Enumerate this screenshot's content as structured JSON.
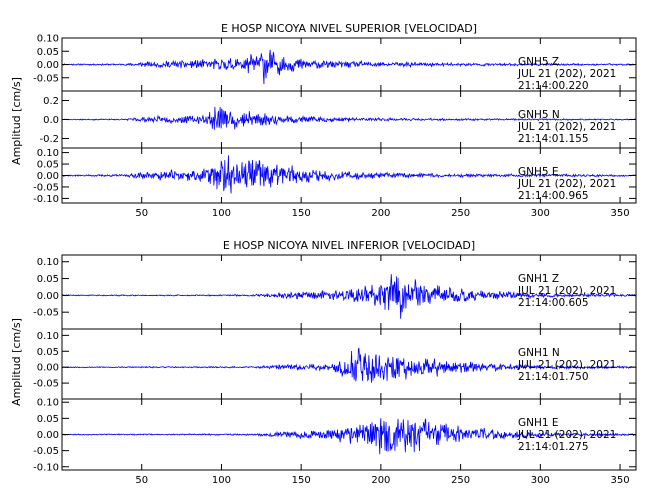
{
  "chart_data": [
    {
      "type": "line",
      "title": "E HOSP NICOYA NIVEL SUPERIOR [VELOCIDAD]",
      "ylabel": "Amplitud [cm/s]",
      "xlabel": "",
      "xlim": [
        0,
        360
      ],
      "x_ticks": [
        50,
        100,
        150,
        200,
        250,
        300,
        350
      ],
      "line_color": "#0000ff",
      "panels": [
        {
          "station": "GNH5",
          "component": "Z",
          "date": "JUL 21 (202), 2021",
          "time": "21:14:00.220",
          "ylim": [
            -0.1,
            0.1
          ],
          "y_ticks": [
            0.1,
            0.05,
            0.0,
            -0.05
          ],
          "y_tick_labels": [
            "0.10",
            "0.05",
            "0.00",
            "-0.05"
          ],
          "seed": 11,
          "envelope": [
            [
              0,
              0.003
            ],
            [
              40,
              0.004
            ],
            [
              50,
              0.012
            ],
            [
              70,
              0.018
            ],
            [
              85,
              0.022
            ],
            [
              95,
              0.025
            ],
            [
              105,
              0.03
            ],
            [
              115,
              0.04
            ],
            [
              122,
              0.06
            ],
            [
              126,
              0.1
            ],
            [
              130,
              0.07
            ],
            [
              140,
              0.035
            ],
            [
              160,
              0.02
            ],
            [
              200,
              0.012
            ],
            [
              250,
              0.007
            ],
            [
              300,
              0.005
            ],
            [
              360,
              0.004
            ]
          ]
        },
        {
          "station": "GNH5",
          "component": "N",
          "date": "JUL 21 (202), 2021",
          "time": "21:14:01.155",
          "ylim": [
            -0.3,
            0.3
          ],
          "y_ticks": [
            0.2,
            0.0,
            -0.2
          ],
          "y_tick_labels": [
            "0.2",
            "0.0",
            "-0.2"
          ],
          "seed": 23,
          "envelope": [
            [
              0,
              0.006
            ],
            [
              40,
              0.01
            ],
            [
              50,
              0.035
            ],
            [
              70,
              0.045
            ],
            [
              90,
              0.06
            ],
            [
              96,
              0.2
            ],
            [
              100,
              0.22
            ],
            [
              106,
              0.12
            ],
            [
              112,
              0.14
            ],
            [
              120,
              0.1
            ],
            [
              135,
              0.06
            ],
            [
              160,
              0.035
            ],
            [
              200,
              0.02
            ],
            [
              260,
              0.012
            ],
            [
              360,
              0.008
            ]
          ]
        },
        {
          "station": "GNH5",
          "component": "E",
          "date": "JUL 21 (202), 2021",
          "time": "21:14:00.965",
          "ylim": [
            -0.12,
            0.12
          ],
          "y_ticks": [
            0.1,
            0.05,
            0.0,
            -0.05,
            -0.1
          ],
          "y_tick_labels": [
            "0.10",
            "0.05",
            "0.00",
            "-0.05",
            "-0.10"
          ],
          "seed": 37,
          "envelope": [
            [
              0,
              0.004
            ],
            [
              40,
              0.006
            ],
            [
              50,
              0.02
            ],
            [
              70,
              0.03
            ],
            [
              90,
              0.04
            ],
            [
              96,
              0.09
            ],
            [
              100,
              0.11
            ],
            [
              110,
              0.09
            ],
            [
              120,
              0.1
            ],
            [
              130,
              0.08
            ],
            [
              150,
              0.04
            ],
            [
              170,
              0.025
            ],
            [
              200,
              0.015
            ],
            [
              260,
              0.008
            ],
            [
              360,
              0.006
            ]
          ]
        }
      ]
    },
    {
      "type": "line",
      "title": "E HOSP NICOYA NIVEL INFERIOR [VELOCIDAD]",
      "ylabel": "Amplitud [cm/s]",
      "xlabel": "",
      "xlim": [
        0,
        360
      ],
      "x_ticks": [
        50,
        100,
        150,
        200,
        250,
        300,
        350
      ],
      "line_color": "#0000ff",
      "panels": [
        {
          "station": "GNH1",
          "component": "Z",
          "date": "JUL 21 (202), 2021",
          "time": "21:14:00.605",
          "ylim": [
            -0.1,
            0.12
          ],
          "y_ticks": [
            0.1,
            0.05,
            0.0,
            -0.05
          ],
          "y_tick_labels": [
            "0.10",
            "0.05",
            "0.00",
            "-0.05"
          ],
          "seed": 41,
          "envelope": [
            [
              0,
              0.002
            ],
            [
              120,
              0.003
            ],
            [
              135,
              0.012
            ],
            [
              150,
              0.015
            ],
            [
              175,
              0.02
            ],
            [
              185,
              0.03
            ],
            [
              200,
              0.05
            ],
            [
              210,
              0.09
            ],
            [
              215,
              0.07
            ],
            [
              230,
              0.04
            ],
            [
              250,
              0.025
            ],
            [
              280,
              0.012
            ],
            [
              310,
              0.006
            ],
            [
              360,
              0.004
            ]
          ]
        },
        {
          "station": "GNH1",
          "component": "N",
          "date": "JUL 21 (202), 2021",
          "time": "21:14:01.750",
          "ylim": [
            -0.1,
            0.12
          ],
          "y_ticks": [
            0.1,
            0.05,
            0.0,
            -0.05
          ],
          "y_tick_labels": [
            "0.10",
            "0.05",
            "0.00",
            "-0.05"
          ],
          "seed": 53,
          "envelope": [
            [
              0,
              0.002
            ],
            [
              120,
              0.003
            ],
            [
              135,
              0.01
            ],
            [
              170,
              0.015
            ],
            [
              180,
              0.05
            ],
            [
              184,
              0.1
            ],
            [
              190,
              0.07
            ],
            [
              200,
              0.06
            ],
            [
              215,
              0.05
            ],
            [
              240,
              0.03
            ],
            [
              270,
              0.015
            ],
            [
              300,
              0.008
            ],
            [
              360,
              0.004
            ]
          ]
        },
        {
          "station": "GNH1",
          "component": "E",
          "date": "JUL 21 (202), 2021",
          "time": "21:14:01.275",
          "ylim": [
            -0.11,
            0.11
          ],
          "y_ticks": [
            0.1,
            0.05,
            0.0,
            -0.05,
            -0.1
          ],
          "y_tick_labels": [
            "0.10",
            "0.05",
            "0.00",
            "-0.05",
            "-0.10"
          ],
          "seed": 67,
          "envelope": [
            [
              0,
              0.002
            ],
            [
              120,
              0.003
            ],
            [
              135,
              0.01
            ],
            [
              170,
              0.02
            ],
            [
              185,
              0.04
            ],
            [
              200,
              0.07
            ],
            [
              210,
              0.09
            ],
            [
              220,
              0.07
            ],
            [
              240,
              0.04
            ],
            [
              260,
              0.025
            ],
            [
              290,
              0.012
            ],
            [
              320,
              0.006
            ],
            [
              360,
              0.004
            ]
          ]
        }
      ]
    }
  ]
}
